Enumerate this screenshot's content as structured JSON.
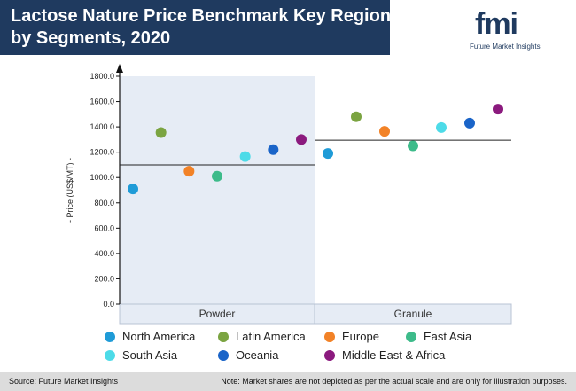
{
  "header": {
    "title": "Lactose Nature Price Benchmark Key Regions by Segments, 2020",
    "logo_text": "fmi",
    "logo_tagline": "Future Market Insights",
    "background_color": "#1f3a5f"
  },
  "chart_data": {
    "type": "scatter",
    "ylabel": "- Price (US$/MT) -",
    "ylim": [
      0,
      1800
    ],
    "yticks": [
      "0.0",
      "200.0",
      "400.0",
      "600.0",
      "800.0",
      "1000.0",
      "1200.0",
      "1400.0",
      "1600.0",
      "1800.0"
    ],
    "categories": [
      "Powder",
      "Granule"
    ],
    "averages": [
      1100,
      1295
    ],
    "series": [
      {
        "name": "North America",
        "color": "#1f9bd7",
        "values": [
          910,
          1190
        ]
      },
      {
        "name": "Latin America",
        "color": "#7ba441",
        "values": [
          1355,
          1480
        ]
      },
      {
        "name": "Europe",
        "color": "#f28227",
        "values": [
          1050,
          1365
        ]
      },
      {
        "name": "East Asia",
        "color": "#3dbb8a",
        "values": [
          1010,
          1250
        ]
      },
      {
        "name": "South Asia",
        "color": "#4ddbe8",
        "values": [
          1165,
          1395
        ]
      },
      {
        "name": "Oceania",
        "color": "#1a64c8",
        "values": [
          1220,
          1430
        ]
      },
      {
        "name": "Middle East & Africa",
        "color": "#8b1a7e",
        "values": [
          1300,
          1540
        ]
      }
    ],
    "grid": false,
    "legend_position": "bottom"
  },
  "footer": {
    "source": "Source: Future Market Insights",
    "note": "Note: Market shares are not depicted as per the actual scale and are only for illustration purposes."
  }
}
